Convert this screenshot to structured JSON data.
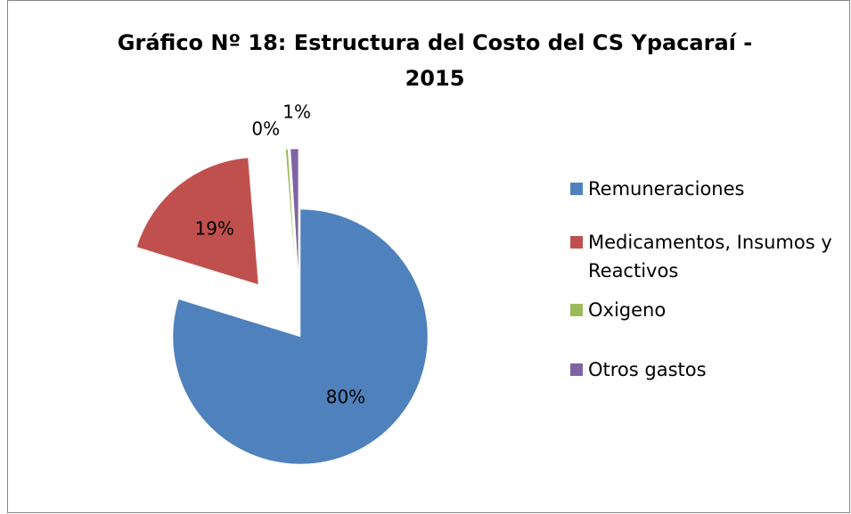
{
  "chart_data": {
    "type": "pie",
    "title": "Gráfico Nº 18: Estructura del Costo del CS Ypacaraí - 2015",
    "categories": [
      "Remuneraciones",
      "Medicamentos, Insumos y Reactivos",
      "Oxigeno",
      "Otros gastos"
    ],
    "values": [
      80,
      19,
      0.3,
      1
    ],
    "value_labels": [
      "80%",
      "19%",
      "0%",
      "1%"
    ],
    "colors": [
      "#4f81bd",
      "#c0504d",
      "#9bbb59",
      "#8064a2"
    ],
    "legend": "right"
  }
}
